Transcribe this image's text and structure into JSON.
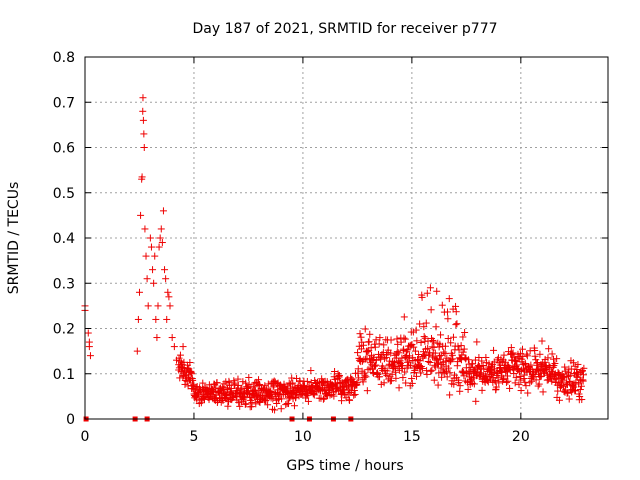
{
  "chart_data": {
    "type": "scatter",
    "title": "Day 187 of 2021, SRMTID for receiver p777",
    "xlabel": "GPS time / hours",
    "ylabel": "SRMTID / TECUs",
    "xlim": [
      0,
      24
    ],
    "ylim": [
      0,
      0.8
    ],
    "grid": true,
    "x_ticks": [
      0,
      5,
      10,
      15,
      20
    ],
    "x_tick_labels": [
      "0",
      "5",
      "10",
      "15",
      "20"
    ],
    "y_ticks": [
      0,
      0.1,
      0.2,
      0.3,
      0.4,
      0.5,
      0.6,
      0.7,
      0.8
    ],
    "y_tick_labels": [
      "0",
      "0.1",
      "0.2",
      "0.3",
      "0.4",
      "0.5",
      "0.6",
      "0.7",
      "0.8"
    ],
    "marker": "+",
    "color": "#ee0000",
    "series": [
      {
        "name": "SRMTID",
        "points": [
          [
            0.0,
            0.25
          ],
          [
            0.0,
            0.24
          ],
          [
            0.15,
            0.19
          ],
          [
            0.2,
            0.17
          ],
          [
            0.2,
            0.16
          ],
          [
            0.25,
            0.14
          ],
          [
            2.4,
            0.15
          ],
          [
            2.45,
            0.22
          ],
          [
            2.5,
            0.28
          ],
          [
            2.55,
            0.45
          ],
          [
            2.6,
            0.53
          ],
          [
            2.62,
            0.535
          ],
          [
            2.65,
            0.68
          ],
          [
            2.66,
            0.71
          ],
          [
            2.68,
            0.66
          ],
          [
            2.7,
            0.63
          ],
          [
            2.72,
            0.6
          ],
          [
            2.75,
            0.42
          ],
          [
            2.8,
            0.36
          ],
          [
            2.85,
            0.31
          ],
          [
            2.9,
            0.25
          ],
          [
            3.0,
            0.4
          ],
          [
            3.05,
            0.38
          ],
          [
            3.1,
            0.33
          ],
          [
            3.15,
            0.3
          ],
          [
            3.2,
            0.36
          ],
          [
            3.25,
            0.22
          ],
          [
            3.3,
            0.18
          ],
          [
            3.35,
            0.25
          ],
          [
            3.4,
            0.38
          ],
          [
            3.45,
            0.4
          ],
          [
            3.5,
            0.42
          ],
          [
            3.55,
            0.39
          ],
          [
            3.6,
            0.46
          ],
          [
            3.65,
            0.33
          ],
          [
            3.7,
            0.31
          ],
          [
            3.75,
            0.22
          ],
          [
            3.8,
            0.28
          ],
          [
            3.85,
            0.27
          ],
          [
            3.9,
            0.25
          ],
          [
            4.0,
            0.18
          ],
          [
            4.1,
            0.16
          ],
          [
            4.2,
            0.13
          ],
          [
            4.3,
            0.12
          ],
          [
            4.5,
            0.16
          ],
          [
            4.7,
            0.11
          ],
          [
            4.9,
            0.1
          ]
        ]
      }
    ],
    "cycle_slip_markers_x": [
      0.05,
      2.3,
      2.85,
      9.5,
      10.3,
      11.4,
      12.2
    ]
  }
}
